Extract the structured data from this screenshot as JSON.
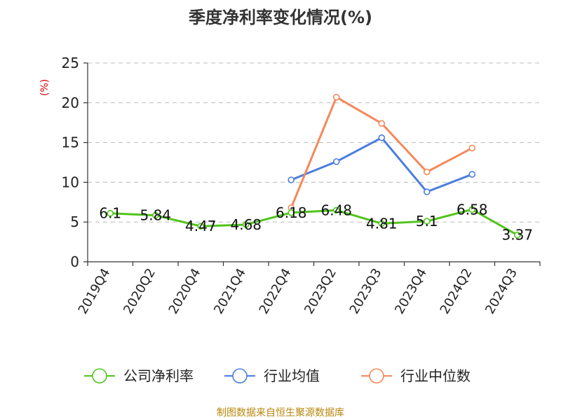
{
  "chart_data": {
    "type": "line",
    "title": "季度净利率变化情况(%)",
    "ylabel": "(%)",
    "xlabel": "",
    "ylim": [
      0,
      25
    ],
    "yticks": [
      0,
      5,
      10,
      15,
      20,
      25
    ],
    "grid": true,
    "legend_position": "bottom",
    "categories": [
      "2019Q4",
      "2020Q2",
      "2020Q4",
      "2021Q4",
      "2022Q4",
      "2023Q2",
      "2023Q3",
      "2023Q4",
      "2024Q2",
      "2024Q3"
    ],
    "series": [
      {
        "name": "公司净利率",
        "color": "#52c41a",
        "values": [
          6.1,
          5.84,
          4.47,
          4.68,
          6.18,
          6.48,
          4.81,
          5.1,
          6.58,
          3.37
        ],
        "data_labels": [
          "6.1",
          "5.84",
          "4.47",
          "4.68",
          "6.18",
          "6.48",
          "4.81",
          "5.1",
          "6.58",
          "3.37"
        ]
      },
      {
        "name": "行业均值",
        "color": "#4a7ede",
        "values": [
          null,
          null,
          null,
          null,
          10.3,
          12.6,
          15.6,
          8.8,
          11.0,
          null
        ]
      },
      {
        "name": "行业中位数",
        "color": "#f5885a",
        "values": [
          null,
          null,
          null,
          null,
          6.8,
          20.7,
          17.4,
          11.3,
          14.3,
          null
        ]
      }
    ]
  },
  "source": "制图数据来自恒生聚源数据库"
}
